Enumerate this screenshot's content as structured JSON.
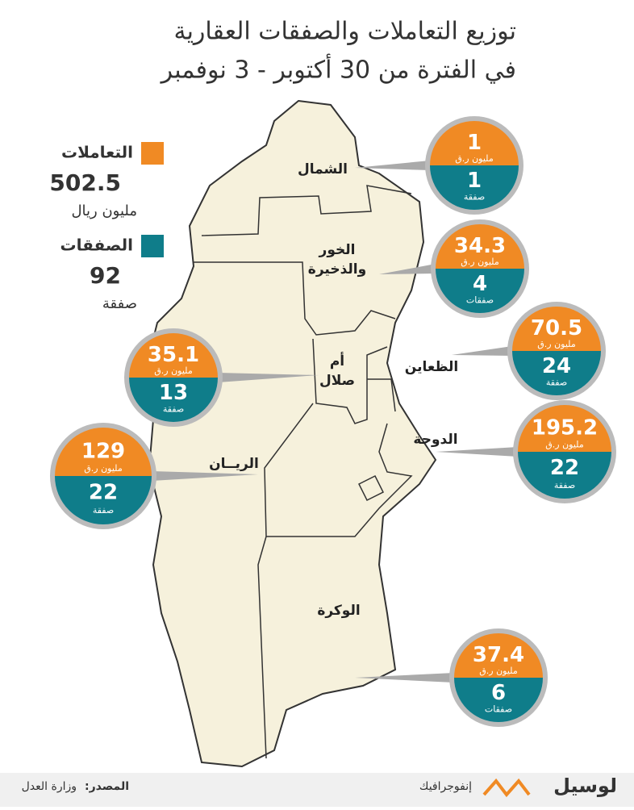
{
  "title": [
    "توزيع التعاملات والصفقات العقارية",
    "في الفترة من 30 أكتوبر - 3 نوفمبر"
  ],
  "legend": [
    {
      "label": "التعاملات",
      "value": 502.5,
      "unit": "مليون ريال"
    },
    {
      "label": "الصفقات",
      "value": 92,
      "unit": "صفقة"
    }
  ],
  "regions": [
    {
      "name": [
        "الشمال"
      ],
      "amount": 1,
      "amount_unit": "مليون ر.ق",
      "deals": 1,
      "deals_unit": "صفقة"
    },
    {
      "name": [
        "الخور",
        "والذخيرة"
      ],
      "amount": 34.3,
      "amount_unit": "مليون ر.ق",
      "deals": 4,
      "deals_unit": "صفقات"
    },
    {
      "name": [
        "الظعاين"
      ],
      "amount": 70.5,
      "amount_unit": "مليون ر.ق",
      "deals": 24,
      "deals_unit": "صفقة"
    },
    {
      "name": [
        "الدوحة"
      ],
      "amount": 195.2,
      "amount_unit": "مليون ر.ق",
      "deals": 22,
      "deals_unit": "صفقة"
    },
    {
      "name": [
        "أم",
        "صلال"
      ],
      "amount": 35.1,
      "amount_unit": "مليون ر.ق",
      "deals": 13,
      "deals_unit": "صفقة"
    },
    {
      "name": [
        "الريــان"
      ],
      "amount": 129,
      "amount_unit": "مليون ر.ق",
      "deals": 22,
      "deals_unit": "صفقة"
    },
    {
      "name": [
        "الوكرة"
      ],
      "amount": 37.4,
      "amount_unit": "مليون ر.ق",
      "deals": 6,
      "deals_unit": "صفقات"
    }
  ],
  "footer": {
    "source_label": "المصدر:",
    "source": "وزارة العدل",
    "brand": "لوسيل",
    "section": "إنفوجرافيك"
  }
}
